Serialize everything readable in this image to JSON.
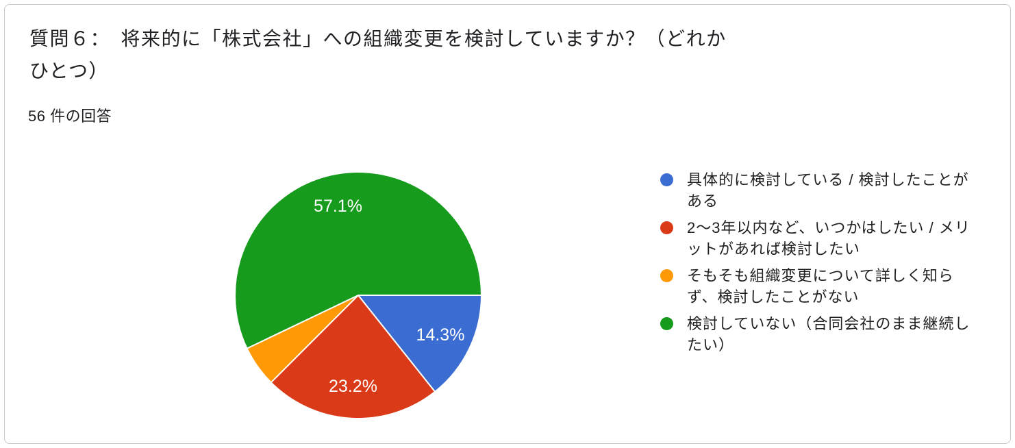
{
  "header": {
    "title": "質問６：　将来的に「株式会社」への組織変更を検討していますか？（どれかひとつ）",
    "title_display": "質問６：　将来的に「株式会社」への組織変更を検討していますか？（どれか\nひとつ）",
    "response_count": "56 件の回答"
  },
  "chart_data": {
    "type": "pie",
    "title": "質問６：　将来的に「株式会社」への組織変更を検討していますか？（どれかひとつ）",
    "subtitle": "56 件の回答",
    "total_responses": 56,
    "start_angle_deg_from_east": 0,
    "direction": "clockwise",
    "legend_position": "right",
    "slices": [
      {
        "label": "具体的に検討している / 検討したことがある",
        "label_wrapped": "具体的に検討している / 検討したことが\nある",
        "percent": 14.3,
        "data_label": "14.3%",
        "color": "#3B6CD1"
      },
      {
        "label": "2〜3年以内など、いつかはしたい / メリットがあれば検討したい",
        "label_wrapped": "2〜3年以内など、いつかはしたい / メリ\nットがあれば検討したい",
        "percent": 23.2,
        "data_label": "23.2%",
        "color": "#DA3A17"
      },
      {
        "label": "そもそも組織変更について詳しく知らず、検討したことがない",
        "label_wrapped": "そもそも組織変更について詳しく知ら\nず、検討したことがない",
        "percent": 5.4,
        "data_label": null,
        "color": "#FF9906"
      },
      {
        "label": "検討していない（合同会社のまま継続したい）",
        "label_wrapped": "検討していない（合同会社のまま継続し\nたい）",
        "percent": 57.1,
        "data_label": "57.1%",
        "color": "#169B1C"
      }
    ]
  },
  "colors": {
    "card_border": "#c9c9c9",
    "title_text": "#202124",
    "legend_text": "#212121",
    "slice_label_text": "#ffffff",
    "slice_separator": "#ffffff"
  }
}
